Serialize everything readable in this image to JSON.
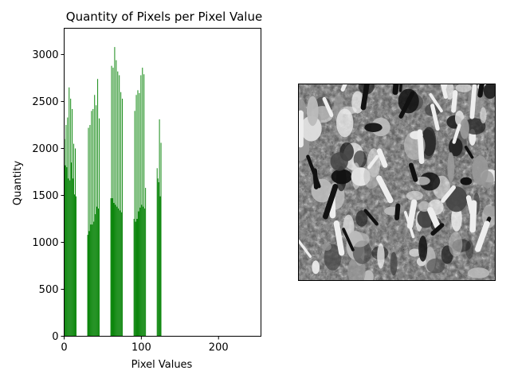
{
  "chart_data": {
    "type": "bar",
    "title": "Quantity of Pixels per Pixel Value",
    "xlabel": "Pixel Values",
    "ylabel": "Quantity",
    "xlim": [
      0,
      255
    ],
    "ylim": [
      0,
      3280
    ],
    "xticks": [
      0,
      100,
      200
    ],
    "yticks": [
      0,
      500,
      1000,
      1500,
      2000,
      2500,
      3000
    ],
    "bar_color": "#008000",
    "grid": false,
    "series": [
      {
        "x": [
          0,
          1,
          2,
          3,
          4,
          5,
          6,
          7,
          8,
          9,
          10,
          11,
          12,
          13,
          14,
          15,
          30,
          31,
          32,
          33,
          34,
          35,
          36,
          37,
          38,
          39,
          40,
          41,
          42,
          43,
          44,
          45,
          60,
          61,
          62,
          63,
          64,
          65,
          66,
          67,
          68,
          69,
          70,
          71,
          72,
          73,
          74,
          75,
          90,
          91,
          92,
          93,
          94,
          95,
          96,
          97,
          98,
          99,
          100,
          101,
          102,
          103,
          104,
          105,
          120,
          121,
          122,
          123,
          124,
          125
        ],
        "values": [
          2100,
          1820,
          2250,
          1800,
          2330,
          1680,
          2650,
          1660,
          2530,
          1850,
          2420,
          1680,
          2050,
          1510,
          2000,
          1490,
          1080,
          2220,
          1120,
          2250,
          1190,
          2400,
          1190,
          2420,
          1220,
          2570,
          1300,
          2460,
          1380,
          2740,
          1360,
          2320,
          1470,
          2880,
          1470,
          2860,
          1420,
          3080,
          1400,
          2940,
          1380,
          2820,
          1360,
          2780,
          1340,
          2600,
          1320,
          2530,
          1250,
          2400,
          1220,
          2570,
          1250,
          2620,
          1330,
          2590,
          1370,
          2780,
          1400,
          2860,
          1380,
          2790,
          1360,
          1580,
          1790,
          1680,
          1640,
          2310,
          1490,
          2060
        ]
      }
    ]
  },
  "image_panel": {
    "description_icon": "crowd-photo"
  }
}
